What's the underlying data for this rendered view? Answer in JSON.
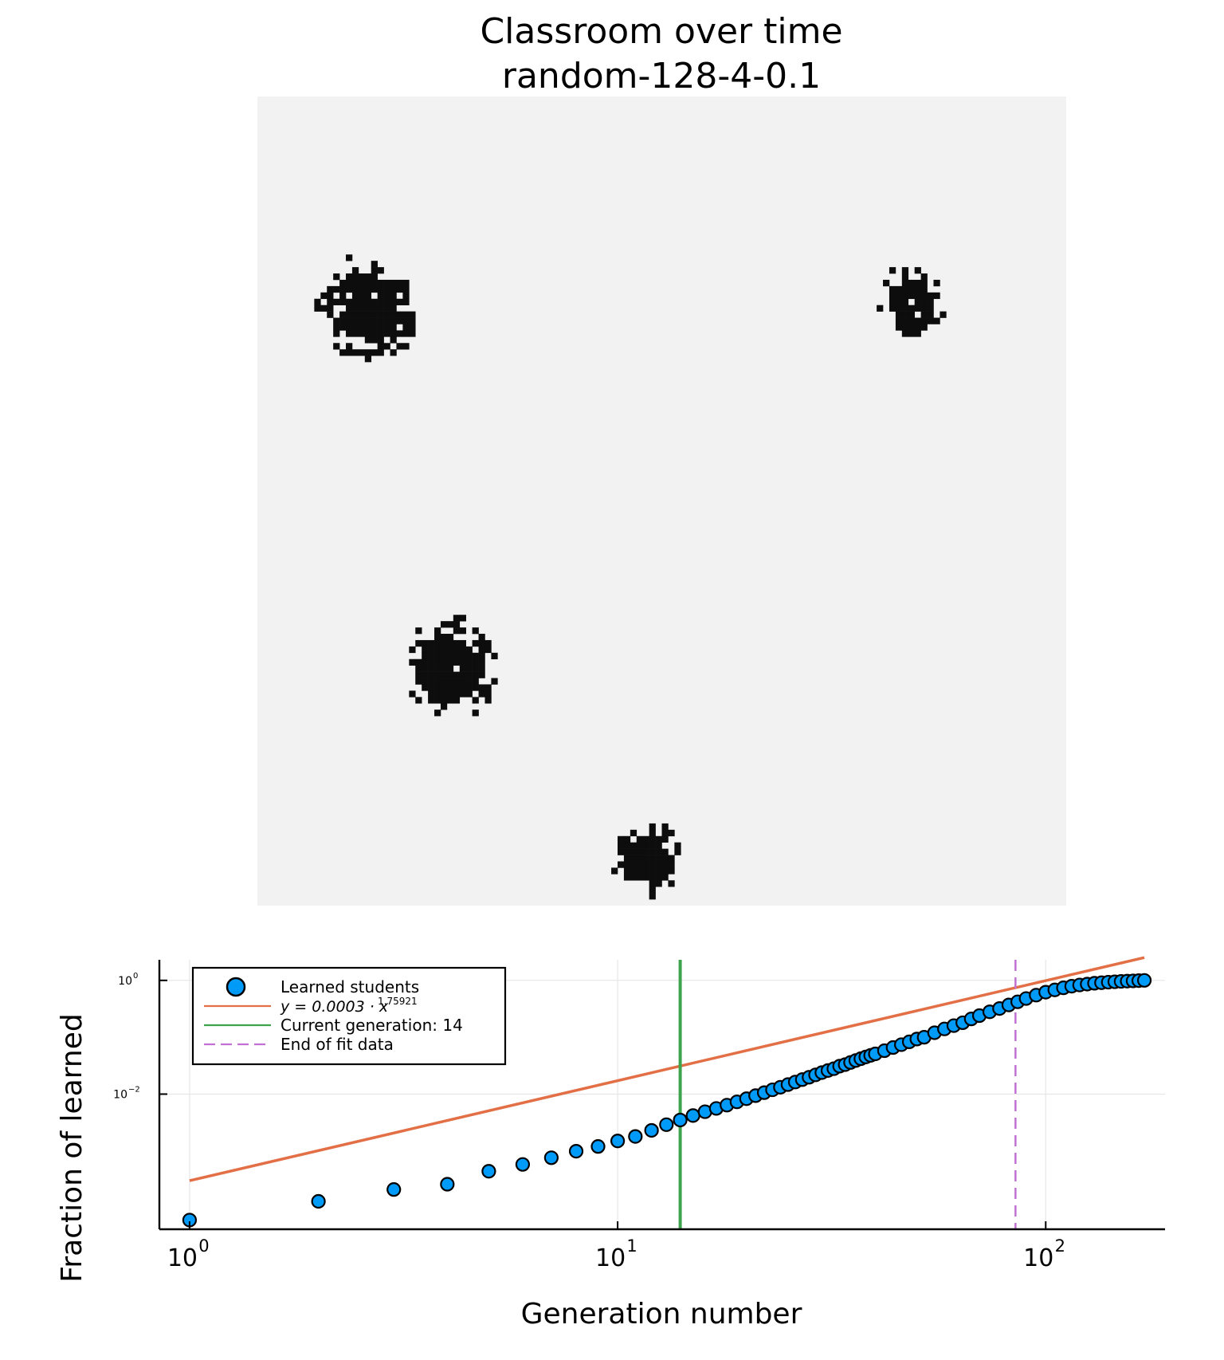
{
  "title": {
    "line1": "Classroom over time",
    "line2": "random-128-4-0.1"
  },
  "colors": {
    "grid_background": "#f2f2f2",
    "learned_cell": "#0d0d0d",
    "scatter_fill": "#009af9",
    "fit_line": "#e26f46",
    "current_line": "#3da44d",
    "fit_end_line": "#c271d2"
  },
  "chart_data": [
    {
      "type": "heatmap",
      "description_free": true,
      "grid_size": 128,
      "cell_values": "0 = not learned (light gray), 1 = learned (black)",
      "clusters": [
        {
          "center_row": 33,
          "center_col": 17,
          "radius": 7
        },
        {
          "center_row": 32,
          "center_col": 103,
          "radius": 4.5
        },
        {
          "center_row": 90,
          "center_col": 30,
          "radius": 6.5
        },
        {
          "center_row": 120,
          "center_col": 61,
          "radius": 5
        }
      ]
    },
    {
      "type": "scatter",
      "xlabel": "Generation number",
      "ylabel": "Fraction of learned",
      "xscale": "log10",
      "yscale": "log10",
      "xlim": [
        0.85,
        190
      ],
      "ylim": [
        4.2e-05,
        2.3
      ],
      "grid": true,
      "legend_position": "top-left",
      "x_ticks": [
        {
          "value": 1,
          "label": "10",
          "exp": "0"
        },
        {
          "value": 10,
          "label": "10",
          "exp": "1"
        },
        {
          "value": 100,
          "label": "10",
          "exp": "2"
        }
      ],
      "y_ticks": [
        {
          "value": 0.01,
          "label": "10",
          "exp": "−2"
        },
        {
          "value": 1,
          "label": "10",
          "exp": "0"
        }
      ],
      "legend": [
        {
          "name": "Learned students",
          "kind": "marker"
        },
        {
          "name": "y = 0.0003 · x^1.75921",
          "kind": "line",
          "display_prefix": "y = 0.0003 · x",
          "display_exp": "1.75921"
        },
        {
          "name": "Current generation: 14",
          "kind": "line"
        },
        {
          "name": "End of fit data",
          "kind": "dashed"
        }
      ],
      "series": [
        {
          "name": "Learned students",
          "x": [
            1,
            2,
            3,
            4,
            5,
            6,
            7,
            8,
            9,
            10,
            11,
            12,
            13,
            14,
            15,
            16,
            17,
            18,
            19,
            20,
            21,
            22,
            23,
            24,
            25,
            26,
            27,
            28,
            29,
            30,
            31,
            32,
            33,
            34,
            35,
            36,
            37,
            38,
            39,
            40,
            42,
            44,
            46,
            48,
            50,
            52,
            55,
            58,
            61,
            64,
            67,
            70,
            74,
            78,
            82,
            86,
            90,
            95,
            100,
            105,
            110,
            115,
            120,
            125,
            130,
            135,
            140,
            145,
            150,
            155,
            160,
            165,
            170
          ],
          "y": [
            6.1e-05,
            0.00013,
            0.00021,
            0.00026,
            0.00044,
            0.00058,
            0.00076,
            0.00099,
            0.0012,
            0.0015,
            0.0018,
            0.0023,
            0.0029,
            0.0035,
            0.0042,
            0.0049,
            0.0056,
            0.0064,
            0.0073,
            0.0083,
            0.0094,
            0.0106,
            0.0119,
            0.0132,
            0.0147,
            0.0163,
            0.018,
            0.0198,
            0.0218,
            0.0239,
            0.026,
            0.028,
            0.031,
            0.033,
            0.036,
            0.039,
            0.042,
            0.045,
            0.048,
            0.051,
            0.058,
            0.066,
            0.074,
            0.083,
            0.093,
            0.1,
            0.12,
            0.14,
            0.16,
            0.18,
            0.21,
            0.24,
            0.28,
            0.32,
            0.37,
            0.42,
            0.48,
            0.55,
            0.62,
            0.68,
            0.74,
            0.79,
            0.83,
            0.86,
            0.89,
            0.91,
            0.93,
            0.945,
            0.96,
            0.97,
            0.98,
            0.99,
            1.0
          ]
        },
        {
          "name": "y = 0.0003 · x^1.75921",
          "coefficient": 0.0003,
          "exponent": 1.75921,
          "x_range": [
            1,
            170
          ]
        },
        {
          "name": "Current generation: 14",
          "x": 14
        },
        {
          "name": "End of fit data",
          "x": 85
        }
      ]
    }
  ]
}
